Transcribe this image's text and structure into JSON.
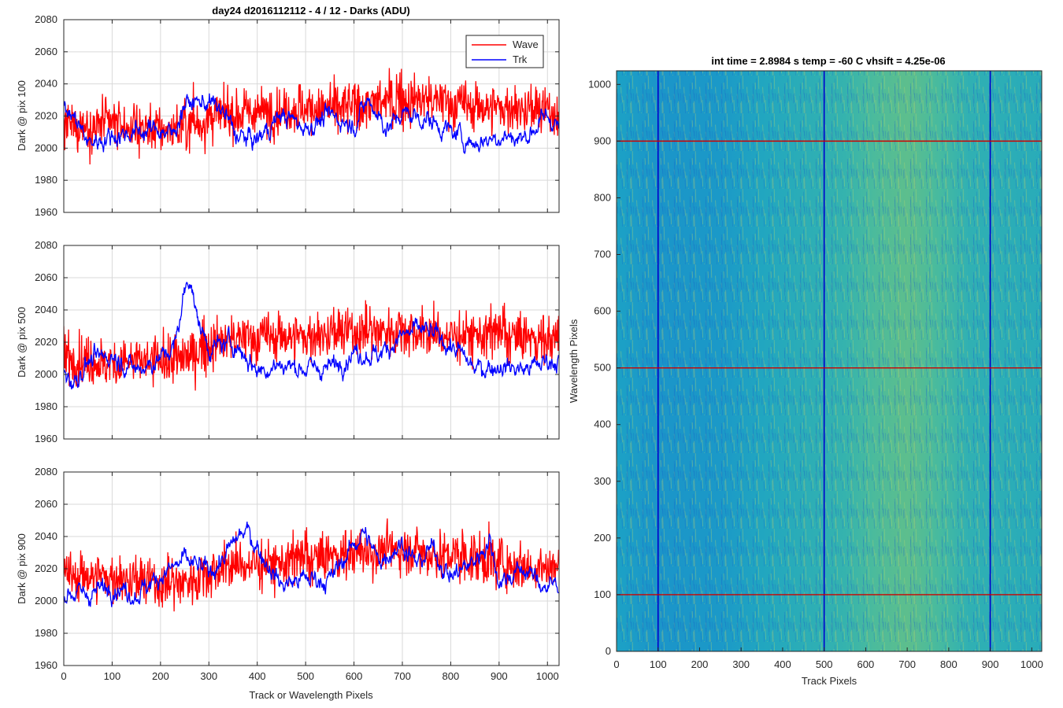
{
  "figure": {
    "background": "#ffffff"
  },
  "chart_data": [
    {
      "type": "line",
      "title": "day24 d2016112112 - 4 / 12 - Darks (ADU)",
      "xlabel": "",
      "ylabel": "Dark @ pix 100",
      "xlim": [
        0,
        1024
      ],
      "ylim": [
        1960,
        2080
      ],
      "xticks": [
        0,
        100,
        200,
        300,
        400,
        500,
        600,
        700,
        800,
        900,
        1000
      ],
      "yticks": [
        1960,
        1980,
        2000,
        2020,
        2040,
        2060,
        2080
      ],
      "grid": true,
      "legend": {
        "placement": "top-right",
        "entries": [
          "Wave",
          "Trk"
        ]
      },
      "series": [
        {
          "name": "Wave",
          "color": "#ff0000",
          "x": [
            0,
            50,
            100,
            150,
            200,
            250,
            300,
            350,
            400,
            450,
            500,
            550,
            600,
            650,
            700,
            750,
            800,
            850,
            900,
            950,
            1000,
            1023
          ],
          "values": [
            2012,
            2014,
            2015,
            2013,
            2011,
            2013,
            2018,
            2021,
            2022,
            2024,
            2025,
            2024,
            2026,
            2028,
            2029,
            2030,
            2028,
            2026,
            2025,
            2024,
            2022,
            2022
          ]
        },
        {
          "name": "Trk",
          "color": "#0000ff",
          "x": [
            0,
            25,
            50,
            100,
            150,
            200,
            225,
            250,
            300,
            330,
            360,
            400,
            450,
            500,
            550,
            600,
            630,
            670,
            700,
            750,
            800,
            850,
            900,
            950,
            1000,
            1023
          ],
          "values": [
            2024,
            2018,
            2003,
            2008,
            2010,
            2012,
            2008,
            2028,
            2029,
            2022,
            2007,
            2005,
            2021,
            2013,
            2020,
            2015,
            2030,
            2012,
            2022,
            2018,
            2010,
            2003,
            2008,
            2006,
            2020,
            2014
          ]
        }
      ]
    },
    {
      "type": "line",
      "title": "",
      "xlabel": "",
      "ylabel": "Dark @ pix 500",
      "xlim": [
        0,
        1024
      ],
      "ylim": [
        1960,
        2080
      ],
      "xticks": [
        0,
        100,
        200,
        300,
        400,
        500,
        600,
        700,
        800,
        900,
        1000
      ],
      "yticks": [
        1960,
        1980,
        2000,
        2020,
        2040,
        2060,
        2080
      ],
      "grid": true,
      "series": [
        {
          "name": "Wave",
          "color": "#ff0000",
          "x": [
            0,
            50,
            100,
            150,
            200,
            250,
            300,
            350,
            400,
            450,
            500,
            550,
            600,
            650,
            700,
            750,
            800,
            850,
            900,
            950,
            1000,
            1023
          ],
          "values": [
            2010,
            2008,
            2007,
            2008,
            2008,
            2010,
            2018,
            2022,
            2023,
            2024,
            2023,
            2025,
            2026,
            2027,
            2028,
            2025,
            2024,
            2025,
            2024,
            2023,
            2022,
            2022
          ]
        },
        {
          "name": "Trk",
          "color": "#0000ff",
          "x": [
            0,
            20,
            50,
            100,
            150,
            200,
            230,
            250,
            262,
            275,
            300,
            350,
            400,
            450,
            500,
            550,
            600,
            650,
            700,
            740,
            780,
            820,
            850,
            900,
            950,
            1000,
            1023
          ],
          "values": [
            2002,
            1995,
            2008,
            2012,
            2003,
            2010,
            2018,
            2052,
            2062,
            2035,
            2016,
            2020,
            2003,
            2006,
            2004,
            2004,
            2014,
            2012,
            2024,
            2028,
            2022,
            2013,
            2003,
            2006,
            2003,
            2008,
            2010
          ]
        }
      ]
    },
    {
      "type": "line",
      "title": "",
      "xlabel": "Track or Wavelength Pixels",
      "ylabel": "Dark @ pix 900",
      "xlim": [
        0,
        1024
      ],
      "ylim": [
        1960,
        2080
      ],
      "xticks": [
        0,
        100,
        200,
        300,
        400,
        500,
        600,
        700,
        800,
        900,
        1000
      ],
      "yticks": [
        1960,
        1980,
        2000,
        2020,
        2040,
        2060,
        2080
      ],
      "grid": true,
      "series": [
        {
          "name": "Wave",
          "color": "#ff0000",
          "x": [
            0,
            50,
            100,
            150,
            200,
            250,
            300,
            350,
            400,
            450,
            500,
            550,
            600,
            650,
            700,
            750,
            800,
            850,
            900,
            950,
            1000,
            1023
          ],
          "values": [
            2015,
            2016,
            2014,
            2012,
            2010,
            2012,
            2018,
            2022,
            2023,
            2024,
            2025,
            2028,
            2030,
            2031,
            2032,
            2030,
            2028,
            2027,
            2024,
            2022,
            2020,
            2020
          ]
        },
        {
          "name": "Trk",
          "color": "#0000ff",
          "x": [
            0,
            50,
            100,
            150,
            200,
            250,
            300,
            330,
            360,
            380,
            420,
            450,
            500,
            550,
            600,
            620,
            650,
            700,
            730,
            760,
            800,
            850,
            880,
            900,
            950,
            1000,
            1023
          ],
          "values": [
            2006,
            2004,
            2010,
            2004,
            2016,
            2025,
            2018,
            2026,
            2040,
            2043,
            2024,
            2010,
            2014,
            2013,
            2035,
            2043,
            2025,
            2036,
            2022,
            2033,
            2015,
            2025,
            2038,
            2012,
            2020,
            2008,
            2012
          ]
        }
      ]
    },
    {
      "type": "heatmap",
      "title": "int time = 2.8984 s    temp = -60 C    vhsift = 4.25e-06",
      "xlabel": "Track Pixels",
      "ylabel": "Wavelength Pixels",
      "xlim": [
        0,
        1024
      ],
      "ylim": [
        0,
        1024
      ],
      "xticks": [
        0,
        100,
        200,
        300,
        400,
        500,
        600,
        700,
        800,
        900,
        1000
      ],
      "yticks": [
        0,
        100,
        200,
        300,
        400,
        500,
        600,
        700,
        800,
        900,
        1000
      ],
      "colormap": [
        "#1f6fd1",
        "#1aa1c6",
        "#3cb8a8",
        "#9cc95a"
      ],
      "column_profile": {
        "x": [
          0,
          100,
          250,
          350,
          450,
          550,
          620,
          700,
          780,
          850,
          950,
          1024
        ],
        "values": [
          0.35,
          0.25,
          0.28,
          0.4,
          0.5,
          0.6,
          0.72,
          0.78,
          0.7,
          0.55,
          0.5,
          0.48
        ]
      },
      "marker_rows": {
        "values": [
          100,
          500,
          900
        ],
        "color": "#cc0000"
      },
      "marker_columns": {
        "values": [
          100,
          500,
          900
        ],
        "color": "#0000cc"
      }
    }
  ]
}
